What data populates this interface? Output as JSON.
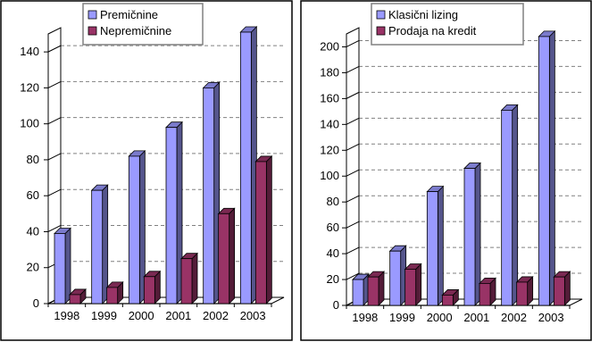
{
  "colors": {
    "series_a": "#9a9aff",
    "series_b": "#993366",
    "gridline": "#808080",
    "axis": "#000000",
    "panel_border": "#000000"
  },
  "chart_data": [
    {
      "type": "bar",
      "style": "3d-clustered",
      "categories": [
        "1998",
        "1999",
        "2000",
        "2001",
        "2002",
        "2003"
      ],
      "series": [
        {
          "name": "Premičnine",
          "color": "#9a9aff",
          "values": [
            39,
            63,
            82,
            98,
            120,
            151
          ]
        },
        {
          "name": "Nepremičnine",
          "color": "#993366",
          "values": [
            5,
            9,
            15,
            25,
            50,
            79
          ]
        }
      ],
      "ylim": [
        0,
        150
      ],
      "yticks": [
        0,
        20,
        40,
        60,
        80,
        100,
        120,
        140
      ],
      "grid": true,
      "legend_position": "top"
    },
    {
      "type": "bar",
      "style": "3d-clustered",
      "categories": [
        "1998",
        "1999",
        "2000",
        "2001",
        "2002",
        "2003"
      ],
      "series": [
        {
          "name": "Klasični lizing",
          "color": "#9a9aff",
          "values": [
            20,
            42,
            88,
            106,
            151,
            208
          ]
        },
        {
          "name": "Prodaja na kredit",
          "color": "#993366",
          "values": [
            22,
            28,
            8,
            17,
            18,
            22
          ]
        }
      ],
      "ylim": [
        0,
        210
      ],
      "yticks": [
        0,
        20,
        40,
        60,
        80,
        100,
        120,
        140,
        160,
        180,
        200
      ],
      "grid": true,
      "legend_position": "top"
    }
  ]
}
